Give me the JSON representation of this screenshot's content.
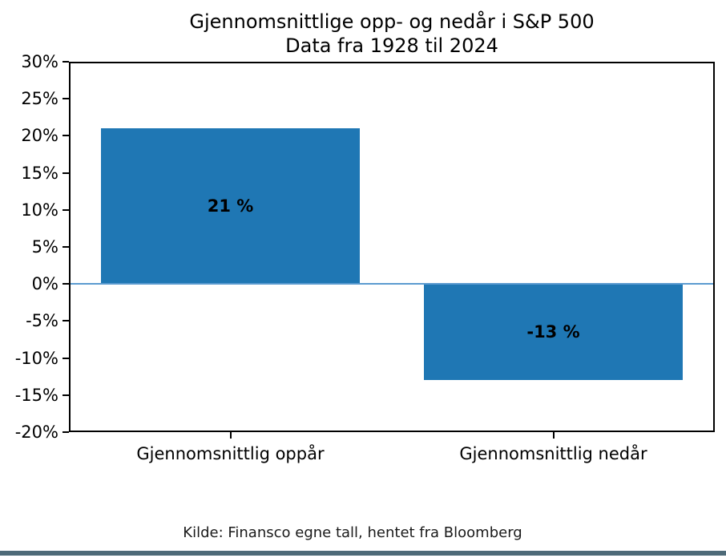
{
  "title": {
    "line1": "Gjennomsnittlige opp- og nedår i S&P 500",
    "line2": "Data fra 1928 til 2024"
  },
  "footer": "Kilde: Finansco egne tall, hentet fra Bloomberg",
  "colors": {
    "bar": "#1f77b4",
    "zero_line": "#5b9bd0",
    "axis": "#000000",
    "bottom_border": "#4e6a78"
  },
  "chart_data": {
    "type": "bar",
    "title": "Gjennomsnittlige opp- og nedår i S&P 500",
    "subtitle": "Data fra 1928 til 2024",
    "categories": [
      "Gjennomsnittlig oppår",
      "Gjennomsnittlig nedår"
    ],
    "values": [
      21,
      -13
    ],
    "bar_labels": [
      "21 %",
      "-13 %"
    ],
    "xlabel": "",
    "ylabel": "",
    "ylim": [
      -20,
      30
    ],
    "y_tick_values": [
      30,
      25,
      20,
      15,
      10,
      5,
      0,
      -5,
      -10,
      -15,
      -20
    ],
    "y_tick_labels": [
      "30%",
      "25%",
      "20%",
      "15%",
      "10%",
      "5%",
      "0%",
      "-5%",
      "-10%",
      "-15%",
      "-20%"
    ],
    "grid": false,
    "legend": null,
    "zero_line": true,
    "source": "Kilde: Finansco egne tall, hentet fra Bloomberg"
  }
}
